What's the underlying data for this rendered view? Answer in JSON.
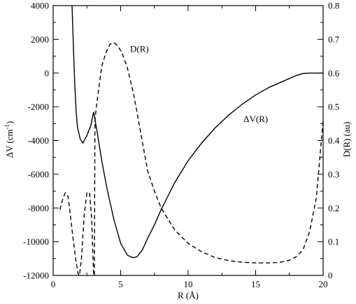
{
  "chart_data": {
    "type": "line",
    "xlabel": "R  (Å)",
    "ylabel_left": {
      "main": "ΔV  (cm",
      "sup": "-1",
      "close": ")"
    },
    "ylabel_right": "D(R)  (au)",
    "xlim": [
      0,
      20
    ],
    "ylim_left": [
      -12000,
      4000
    ],
    "ylim_right": [
      0,
      0.8
    ],
    "xticks": [
      "0",
      "5",
      "10",
      "15",
      "20"
    ],
    "yticks_left": [
      "-12000",
      "-10000",
      "-8000",
      "-6000",
      "-4000",
      "-2000",
      "0",
      "2000",
      "4000"
    ],
    "yticks_right": [
      "0",
      "0.1",
      "0.2",
      "0.3",
      "0.4",
      "0.5",
      "0.6",
      "0.7",
      "0.8"
    ],
    "grid": false,
    "series": [
      {
        "name": "ΔV(R)",
        "axis": "left",
        "style": "solid",
        "x": [
          1.4,
          1.5,
          1.6,
          1.7,
          1.8,
          2.0,
          2.2,
          2.5,
          2.8,
          3.0,
          3.3,
          3.6,
          4.0,
          4.5,
          5.0,
          5.5,
          5.9,
          6.2,
          6.6,
          7.0,
          7.5,
          8.0,
          9.0,
          10.0,
          11.0,
          12.0,
          13.0,
          14.0,
          15.0,
          16.0,
          17.0,
          18.0,
          18.5,
          19.0,
          19.5,
          20.0
        ],
        "y": [
          4000,
          1500,
          -700,
          -2200,
          -3200,
          -3900,
          -4150,
          -3700,
          -3100,
          -2300,
          -3700,
          -5200,
          -6900,
          -8700,
          -10100,
          -10800,
          -10950,
          -10900,
          -10500,
          -9800,
          -9000,
          -8100,
          -6500,
          -5200,
          -4150,
          -3250,
          -2500,
          -1850,
          -1300,
          -850,
          -500,
          -150,
          -30,
          0,
          0,
          0
        ]
      },
      {
        "name": "D(R)",
        "axis": "right",
        "style": "dashed",
        "x": [
          0.5,
          0.7,
          0.9,
          1.1,
          1.3,
          1.5,
          1.7,
          1.85,
          1.95,
          2.1,
          2.3,
          2.5,
          2.7,
          2.85,
          2.95,
          3.0,
          3.05,
          3.1,
          3.2,
          3.4,
          3.6,
          3.9,
          4.2,
          4.5,
          4.8,
          5.1,
          5.5,
          6.0,
          6.5,
          7.0,
          7.5,
          8.0,
          9.0,
          10.0,
          11.0,
          12.0,
          13.0,
          14.0,
          15.0,
          16.0,
          16.5,
          17.0,
          17.5,
          18.0,
          18.5,
          19.0,
          19.5,
          20.0
        ],
        "y": [
          0.195,
          0.225,
          0.245,
          0.235,
          0.17,
          0.1,
          0.04,
          0.005,
          0.0,
          0.05,
          0.18,
          0.245,
          0.245,
          0.17,
          0.06,
          0.0,
          0.0,
          0.46,
          0.5,
          0.56,
          0.62,
          0.66,
          0.685,
          0.69,
          0.68,
          0.66,
          0.615,
          0.53,
          0.42,
          0.31,
          0.25,
          0.2,
          0.135,
          0.095,
          0.07,
          0.053,
          0.044,
          0.039,
          0.037,
          0.037,
          0.038,
          0.04,
          0.045,
          0.055,
          0.075,
          0.13,
          0.23,
          0.46
        ]
      }
    ],
    "annotations": [
      {
        "text": "D(R)",
        "x": 5.7,
        "y_left": 1250
      },
      {
        "text": "ΔV(R)",
        "x": 14.1,
        "y_left": -2900
      }
    ]
  }
}
